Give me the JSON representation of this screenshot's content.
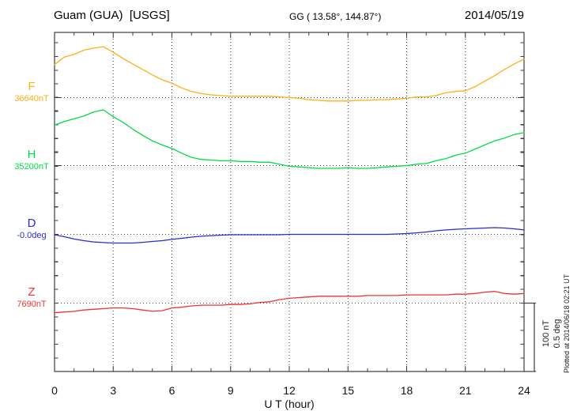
{
  "chart_data": {
    "type": "line",
    "title": "Guam (GUA)  [USGS]",
    "coords_label": "GG ( 13.58°, 144.87°)",
    "date": "2014/05/19",
    "xlabel": "U T (hour)",
    "x_range": [
      0,
      24
    ],
    "x_ticks": [
      0,
      3,
      6,
      9,
      12,
      15,
      18,
      21,
      24
    ],
    "x_minor_tick_step_hours": 1,
    "grid": {
      "vertical_dotted_every_hours": 3,
      "horizontal_dotted": "one dotted baseline per component at its reference value"
    },
    "scale_bar": {
      "labels": [
        "100 nT",
        "0.5 deg"
      ],
      "span_nT": 100,
      "span_deg": 0.5
    },
    "plotted_note": "Plotted at 2014/06/18 02:21 UT",
    "x_start": 0,
    "x_step": 0.5,
    "series": [
      {
        "name": "F",
        "offset_unit": "nT",
        "baseline_label": "36640nT",
        "baseline_value": 36640,
        "color": "#FFAE19",
        "offsets_from_baseline": [
          48,
          59,
          63,
          69,
          72,
          74,
          66,
          57,
          49,
          41,
          33,
          26,
          21,
          14,
          9,
          6,
          4,
          3,
          2,
          2,
          2,
          2,
          2,
          1,
          0,
          -1,
          -3,
          -4,
          -5,
          -5,
          -5,
          -4,
          -4,
          -3,
          -3,
          -2,
          -1,
          1,
          1,
          3,
          7,
          9,
          10,
          16,
          24,
          32,
          41,
          49,
          56
        ]
      },
      {
        "name": "H",
        "offset_unit": "nT",
        "baseline_label": "35200nT",
        "baseline_value": 35200,
        "color": "#00DD44",
        "offsets_from_baseline": [
          59,
          64,
          68,
          72,
          78,
          81,
          71,
          63,
          53,
          44,
          36,
          30,
          25,
          18,
          12,
          9,
          8,
          7,
          7,
          6,
          6,
          5,
          5,
          2,
          -1,
          -2,
          -3,
          -4,
          -4,
          -4,
          -3,
          -4,
          -4,
          -3,
          -2,
          -1,
          0,
          2,
          3,
          7,
          10,
          15,
          18,
          24,
          30,
          36,
          40,
          45,
          48
        ]
      },
      {
        "name": "D",
        "offset_unit": "deg",
        "baseline_label": "-0.0deg",
        "baseline_value": -0.0,
        "color": "#2B2BCC",
        "offsets_from_baseline": [
          -0.003,
          -0.017,
          -0.034,
          -0.046,
          -0.055,
          -0.06,
          -0.063,
          -0.063,
          -0.063,
          -0.058,
          -0.052,
          -0.046,
          -0.037,
          -0.029,
          -0.02,
          -0.014,
          -0.009,
          -0.006,
          -0.003,
          -0.003,
          -0.003,
          -0.003,
          -0.003,
          -0.003,
          0,
          0,
          0,
          0,
          0,
          0,
          0,
          0,
          0,
          0,
          0,
          0.003,
          0.006,
          0.011,
          0.017,
          0.026,
          0.032,
          0.037,
          0.04,
          0.043,
          0.046,
          0.049,
          0.046,
          0.04,
          0.032
        ]
      },
      {
        "name": "Z",
        "offset_unit": "nT",
        "baseline_label": "7690nT",
        "baseline_value": 7690,
        "color": "#EE3333",
        "offsets_from_baseline": [
          -14,
          -13,
          -12,
          -10,
          -9,
          -8,
          -7,
          -7,
          -8,
          -10,
          -12,
          -11,
          -7,
          -6,
          -4,
          -3,
          -3,
          -3,
          -2,
          -2,
          -1,
          1,
          2,
          5,
          7,
          8,
          9,
          10,
          10,
          10,
          10,
          10,
          11,
          11,
          11,
          11,
          12,
          12,
          12,
          12,
          12,
          13,
          13,
          14,
          16,
          17,
          14,
          13,
          14
        ]
      }
    ]
  }
}
